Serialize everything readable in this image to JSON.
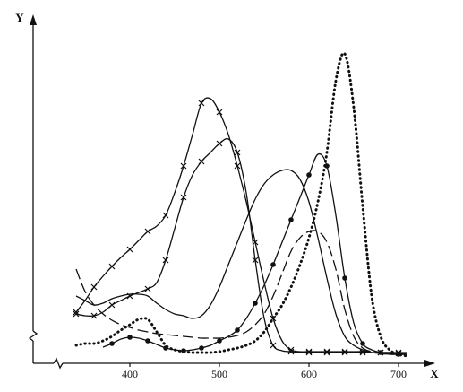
{
  "chart_data": {
    "type": "line",
    "x_label": "X",
    "y_label": "Y",
    "xlim": [
      295,
      745
    ],
    "ylim": [
      0,
      380
    ],
    "xticks": [
      400,
      500,
      600,
      700
    ],
    "color": "#111111",
    "x": [
      340,
      350,
      360,
      370,
      380,
      390,
      400,
      410,
      420,
      430,
      440,
      450,
      460,
      470,
      480,
      490,
      500,
      510,
      520,
      530,
      540,
      550,
      560,
      570,
      580,
      590,
      600,
      610,
      620,
      630,
      640,
      650,
      660,
      670,
      680,
      690,
      700,
      710
    ],
    "series": [
      {
        "style": "dotted",
        "marker": "none",
        "values": [
          20,
          22,
          22,
          25,
          30,
          37,
          43,
          49,
          49,
          35,
          20,
          15,
          13,
          12,
          12,
          12,
          13,
          15,
          17,
          20,
          25,
          35,
          50,
          65,
          85,
          110,
          140,
          180,
          235,
          315,
          345,
          285,
          175,
          75,
          30,
          15,
          10,
          8
        ]
      },
      {
        "style": "solid",
        "marker": "x",
        "values": [
          57,
          70,
          85,
          97,
          108,
          118,
          127,
          137,
          147,
          153,
          165,
          190,
          220,
          255,
          290,
          295,
          280,
          255,
          220,
          180,
          135,
          90,
          50,
          25,
          15,
          13,
          13,
          13,
          13,
          13,
          13,
          13,
          13,
          12,
          12,
          12,
          11,
          10
        ]
      },
      {
        "style": "solid",
        "marker": "x",
        "values": [
          55,
          53,
          53,
          57,
          65,
          70,
          75,
          79,
          83,
          90,
          115,
          150,
          185,
          210,
          225,
          235,
          245,
          250,
          235,
          190,
          115,
          50,
          20,
          14,
          13,
          12,
          12,
          12,
          12,
          12,
          12,
          12,
          12,
          12,
          12,
          12,
          12,
          12
        ]
      },
      {
        "style": "solid",
        "marker": "none",
        "values": [
          75,
          70,
          65,
          67,
          72,
          75,
          77,
          77,
          75,
          67,
          60,
          55,
          53,
          50,
          53,
          65,
          85,
          110,
          135,
          160,
          183,
          200,
          210,
          215,
          215,
          205,
          180,
          140,
          95,
          55,
          30,
          20,
          15,
          12,
          11,
          10,
          10,
          10
        ]
      },
      {
        "style": "dashed",
        "marker": "none",
        "values": [
          105,
          80,
          65,
          55,
          48,
          43,
          40,
          37,
          35,
          33,
          32,
          31,
          30,
          29,
          28,
          28,
          28,
          29,
          31,
          35,
          43,
          55,
          75,
          100,
          125,
          140,
          147,
          147,
          135,
          105,
          60,
          30,
          17,
          13,
          11,
          10,
          10,
          10
        ]
      },
      {
        "style": "solid",
        "marker": "circle",
        "values": [
          null,
          null,
          null,
          18,
          22,
          27,
          29,
          28,
          25,
          21,
          17,
          15,
          14,
          15,
          17,
          20,
          25,
          30,
          37,
          50,
          67,
          87,
          110,
          135,
          160,
          185,
          210,
          233,
          220,
          165,
          95,
          45,
          22,
          15,
          12,
          11,
          10,
          10
        ]
      }
    ]
  }
}
